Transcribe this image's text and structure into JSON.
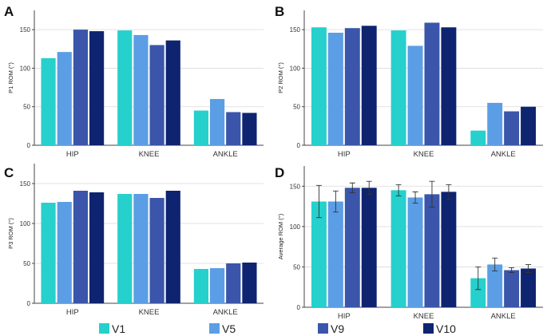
{
  "chart_data": [
    {
      "panel": "A",
      "type": "bar",
      "ylabel": "P1 ROM (°)",
      "categories": [
        "HIP",
        "KNEE",
        "ANKLE"
      ],
      "series": [
        {
          "name": "V1",
          "values": [
            113,
            149,
            45
          ]
        },
        {
          "name": "V5",
          "values": [
            121,
            143,
            60
          ]
        },
        {
          "name": "V9",
          "values": [
            150,
            130,
            43
          ]
        },
        {
          "name": "V10",
          "values": [
            148,
            136,
            42
          ]
        }
      ],
      "ylim": [
        0,
        175
      ],
      "yticks": [
        0,
        50,
        100,
        150
      ],
      "grid": true
    },
    {
      "panel": "B",
      "type": "bar",
      "ylabel": "P2 ROM (°)",
      "categories": [
        "HIP",
        "KNEE",
        "ANKLE"
      ],
      "series": [
        {
          "name": "V1",
          "values": [
            153,
            149,
            19
          ]
        },
        {
          "name": "V5",
          "values": [
            146,
            129,
            55
          ]
        },
        {
          "name": "V9",
          "values": [
            152,
            159,
            44
          ]
        },
        {
          "name": "V10",
          "values": [
            155,
            153,
            50
          ]
        }
      ],
      "ylim": [
        0,
        175
      ],
      "yticks": [
        0,
        50,
        100,
        150
      ],
      "grid": true
    },
    {
      "panel": "C",
      "type": "bar",
      "ylabel": "P3 ROM (°)",
      "categories": [
        "HIP",
        "KNEE",
        "ANKLE"
      ],
      "series": [
        {
          "name": "V1",
          "values": [
            126,
            137,
            43
          ]
        },
        {
          "name": "V5",
          "values": [
            127,
            137,
            44
          ]
        },
        {
          "name": "V9",
          "values": [
            141,
            132,
            50
          ]
        },
        {
          "name": "V10",
          "values": [
            139,
            141,
            51
          ]
        }
      ],
      "ylim": [
        0,
        175
      ],
      "yticks": [
        0,
        50,
        100,
        150
      ],
      "grid": true
    },
    {
      "panel": "D",
      "type": "bar",
      "ylabel": "Average ROM (°)",
      "categories": [
        "HIP",
        "KNEE",
        "ANKLE"
      ],
      "series": [
        {
          "name": "V1",
          "values": [
            131,
            145,
            36
          ],
          "errors": [
            20,
            7,
            14
          ]
        },
        {
          "name": "V5",
          "values": [
            131,
            136,
            53
          ],
          "errors": [
            13,
            7,
            8
          ]
        },
        {
          "name": "V9",
          "values": [
            148,
            140,
            46
          ],
          "errors": [
            6,
            16,
            3
          ]
        },
        {
          "name": "V10",
          "values": [
            148,
            143,
            48
          ],
          "errors": [
            8,
            9,
            5
          ]
        }
      ],
      "ylim": [
        0,
        175
      ],
      "yticks": [
        0,
        50,
        100,
        150
      ],
      "grid": true
    }
  ],
  "legend": [
    {
      "name": "V1",
      "color": "#26d0cc"
    },
    {
      "name": "V5",
      "color": "#5b9ee6"
    },
    {
      "name": "V9",
      "color": "#3a55aa"
    },
    {
      "name": "V10",
      "color": "#0e2470"
    }
  ]
}
